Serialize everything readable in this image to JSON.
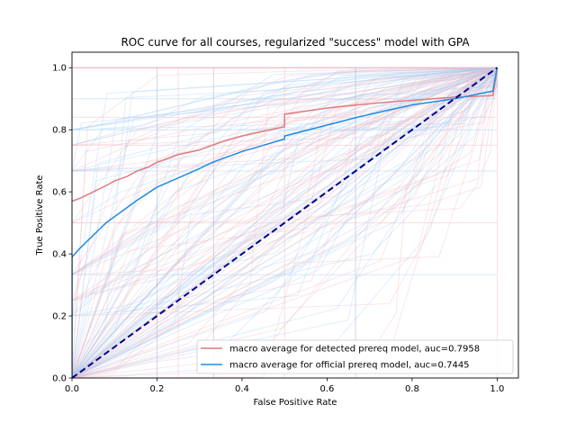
{
  "chart_data": {
    "type": "line",
    "title": "ROC curve for all courses, regularized \"success\" model with GPA",
    "xlabel": "False Positive Rate",
    "ylabel": "True Positive Rate",
    "xlim": [
      0,
      1.05
    ],
    "ylim": [
      0,
      1.05
    ],
    "xticks": [
      "0.0",
      "0.2",
      "0.4",
      "0.6",
      "0.8",
      "1.0"
    ],
    "yticks": [
      "0.0",
      "0.2",
      "0.4",
      "0.6",
      "0.8",
      "1.0"
    ],
    "grid": false,
    "legend_position": "lower-right",
    "colors": {
      "detected": "#e07a7f",
      "official": "#1f8be8",
      "diagonal": "#00008b",
      "background_detected": "#f2b8bf",
      "background_official": "#a7cdf7"
    },
    "series": [
      {
        "name": "macro average for detected prereq model, auc=0.7958",
        "x": [
          0,
          0.02,
          0.05,
          0.08,
          0.1,
          0.13,
          0.15,
          0.18,
          0.2,
          0.25,
          0.3,
          0.33,
          0.36,
          0.4,
          0.45,
          0.5,
          0.5,
          0.55,
          0.6,
          0.67,
          0.75,
          0.8,
          0.9,
          0.99,
          1.0
        ],
        "y": [
          0.57,
          0.58,
          0.6,
          0.62,
          0.635,
          0.65,
          0.665,
          0.68,
          0.695,
          0.72,
          0.735,
          0.75,
          0.765,
          0.78,
          0.795,
          0.81,
          0.85,
          0.86,
          0.87,
          0.88,
          0.89,
          0.895,
          0.905,
          0.91,
          1.0
        ]
      },
      {
        "name": "macro average for official prereq model, auc=0.7445",
        "x": [
          0,
          0.0,
          0.02,
          0.05,
          0.08,
          0.1,
          0.15,
          0.2,
          0.25,
          0.3,
          0.33,
          0.4,
          0.45,
          0.5,
          0.5,
          0.6,
          0.67,
          0.75,
          0.8,
          0.9,
          0.99,
          1.0
        ],
        "y": [
          0,
          0.39,
          0.42,
          0.46,
          0.5,
          0.52,
          0.57,
          0.615,
          0.645,
          0.675,
          0.695,
          0.73,
          0.75,
          0.77,
          0.78,
          0.815,
          0.84,
          0.865,
          0.88,
          0.9,
          0.925,
          1.0
        ]
      },
      {
        "x": [
          0,
          1
        ],
        "y": [
          0,
          1
        ]
      }
    ]
  }
}
